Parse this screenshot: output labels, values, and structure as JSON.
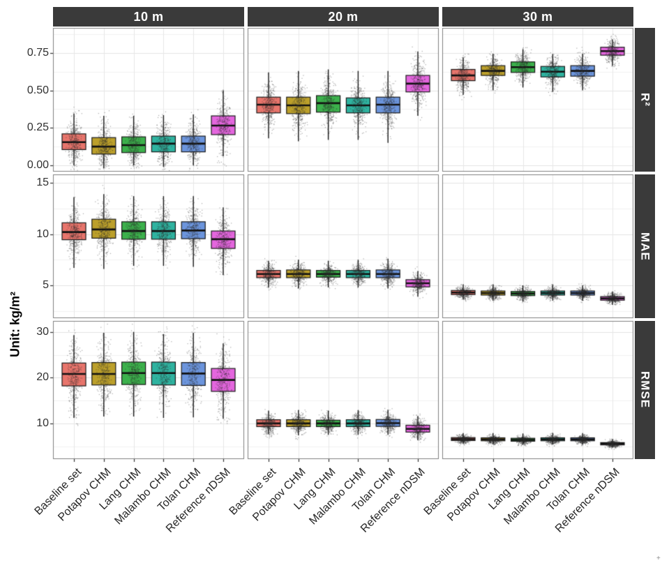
{
  "chart_data": {
    "type": "boxplot",
    "description": "Faceted boxplots with jittered points; columns are spatial resolutions, rows are accuracy metrics. Box stats are [whisker_low, q1, median, q3, whisker_high].",
    "ylabel": "Unit: kg/m²",
    "facet_cols": [
      "10 m",
      "20 m",
      "30 m"
    ],
    "facet_rows": [
      "R²",
      "MAE",
      "RMSE"
    ],
    "categories": [
      "Baseline set",
      "Potapov CHM",
      "Lang CHM",
      "Malambo CHM",
      "Tolan CHM",
      "Reference nDSM"
    ],
    "palette": [
      "#E8756C",
      "#BCA02B",
      "#3CB14C",
      "#2FB3A0",
      "#6C95DD",
      "#E466DE"
    ],
    "strip_bg": "#3A3A3A",
    "strip_fg": "#FFFFFF",
    "grid_major": "#E3E3E3",
    "grid_minor": "#F2F2F2",
    "panel_border": "#7F7F7F",
    "point_color": "rgba(45,45,45,0.40)",
    "legend_position": "none",
    "rows": [
      {
        "label": "R²",
        "ticks": [
          0,
          0.25,
          0.5,
          0.75
        ],
        "tick_labels": [
          "0.00",
          "0.25",
          "0.50",
          "0.75"
        ],
        "domain": [
          -0.042,
          0.917
        ],
        "panels": [
          {
            "col": "10 m",
            "boxes": [
              [
                0.0,
                0.105,
                0.155,
                0.21,
                0.345
              ],
              [
                -0.02,
                0.075,
                0.125,
                0.185,
                0.33
              ],
              [
                0.0,
                0.085,
                0.135,
                0.19,
                0.33
              ],
              [
                -0.01,
                0.09,
                0.145,
                0.195,
                0.335
              ],
              [
                0.0,
                0.09,
                0.145,
                0.195,
                0.34
              ],
              [
                0.06,
                0.205,
                0.265,
                0.33,
                0.5
              ]
            ]
          },
          {
            "col": "20 m",
            "boxes": [
              [
                0.18,
                0.35,
                0.405,
                0.455,
                0.62
              ],
              [
                0.16,
                0.345,
                0.4,
                0.455,
                0.63
              ],
              [
                0.17,
                0.355,
                0.415,
                0.465,
                0.64
              ],
              [
                0.17,
                0.35,
                0.4,
                0.45,
                0.63
              ],
              [
                0.15,
                0.35,
                0.405,
                0.455,
                0.63
              ],
              [
                0.33,
                0.49,
                0.545,
                0.6,
                0.76
              ]
            ]
          },
          {
            "col": "30 m",
            "boxes": [
              [
                0.47,
                0.565,
                0.6,
                0.64,
                0.72
              ],
              [
                0.5,
                0.6,
                0.63,
                0.665,
                0.745
              ],
              [
                0.52,
                0.62,
                0.655,
                0.69,
                0.775
              ],
              [
                0.49,
                0.59,
                0.625,
                0.66,
                0.74
              ],
              [
                0.5,
                0.595,
                0.63,
                0.665,
                0.745
              ],
              [
                0.665,
                0.735,
                0.762,
                0.788,
                0.84
              ]
            ]
          }
        ]
      },
      {
        "label": "MAE",
        "ticks": [
          5,
          10,
          15
        ],
        "tick_labels": [
          "5",
          "10",
          "15"
        ],
        "domain": [
          1.8,
          15.82
        ],
        "panels": [
          {
            "col": "10 m",
            "boxes": [
              [
                6.7,
                9.45,
                10.2,
                11.1,
                13.6
              ],
              [
                6.6,
                9.6,
                10.45,
                11.45,
                13.9
              ],
              [
                6.9,
                9.5,
                10.3,
                11.2,
                13.7
              ],
              [
                6.9,
                9.5,
                10.3,
                11.2,
                13.7
              ],
              [
                6.8,
                9.55,
                10.35,
                11.2,
                13.7
              ],
              [
                6.0,
                8.6,
                9.5,
                10.3,
                12.6
              ]
            ]
          },
          {
            "col": "20 m",
            "boxes": [
              [
                4.8,
                5.75,
                6.1,
                6.45,
                7.4
              ],
              [
                4.7,
                5.75,
                6.1,
                6.5,
                7.5
              ],
              [
                4.8,
                5.8,
                6.1,
                6.45,
                7.4
              ],
              [
                4.8,
                5.75,
                6.1,
                6.45,
                7.5
              ],
              [
                4.7,
                5.75,
                6.1,
                6.5,
                7.6
              ],
              [
                3.9,
                4.85,
                5.2,
                5.55,
                6.4
              ]
            ]
          },
          {
            "col": "30 m",
            "boxes": [
              [
                3.6,
                4.1,
                4.3,
                4.5,
                5.1
              ],
              [
                3.5,
                4.05,
                4.25,
                4.45,
                5.1
              ],
              [
                3.4,
                4.0,
                4.2,
                4.4,
                5.0
              ],
              [
                3.5,
                4.05,
                4.25,
                4.45,
                5.1
              ],
              [
                3.5,
                4.05,
                4.25,
                4.45,
                5.0
              ],
              [
                3.1,
                3.55,
                3.72,
                3.9,
                4.4
              ]
            ]
          }
        ]
      },
      {
        "label": "RMSE",
        "ticks": [
          10,
          20,
          30
        ],
        "tick_labels": [
          "10",
          "20",
          "30"
        ],
        "domain": [
          2.2,
          32.4
        ],
        "panels": [
          {
            "col": "10 m",
            "boxes": [
              [
                11.2,
                18.2,
                20.8,
                23.2,
                29.3
              ],
              [
                11.5,
                18.4,
                20.8,
                23.3,
                29.8
              ],
              [
                11.5,
                18.5,
                21.0,
                23.4,
                30.0
              ],
              [
                11.2,
                18.4,
                21.0,
                23.4,
                29.5
              ],
              [
                11.3,
                18.3,
                20.9,
                23.3,
                29.8
              ],
              [
                11.0,
                17.0,
                19.5,
                22.0,
                27.5
              ]
            ]
          },
          {
            "col": "20 m",
            "boxes": [
              [
                7.6,
                9.3,
                10.0,
                10.8,
                12.8
              ],
              [
                7.4,
                9.3,
                10.0,
                10.8,
                12.9
              ],
              [
                7.5,
                9.3,
                10.0,
                10.7,
                12.8
              ],
              [
                7.5,
                9.3,
                10.0,
                10.8,
                12.9
              ],
              [
                7.5,
                9.35,
                10.05,
                10.85,
                13.0
              ],
              [
                6.3,
                8.1,
                8.8,
                9.6,
                11.6
              ]
            ]
          },
          {
            "col": "30 m",
            "boxes": [
              [
                5.5,
                6.25,
                6.55,
                6.9,
                7.9
              ],
              [
                5.4,
                6.2,
                6.5,
                6.85,
                7.9
              ],
              [
                5.3,
                6.1,
                6.4,
                6.75,
                7.8
              ],
              [
                5.4,
                6.2,
                6.5,
                6.85,
                7.9
              ],
              [
                5.4,
                6.2,
                6.5,
                6.85,
                7.9
              ],
              [
                4.7,
                5.3,
                5.55,
                5.8,
                6.6
              ]
            ]
          }
        ]
      }
    ],
    "footnote_mark": "+"
  }
}
